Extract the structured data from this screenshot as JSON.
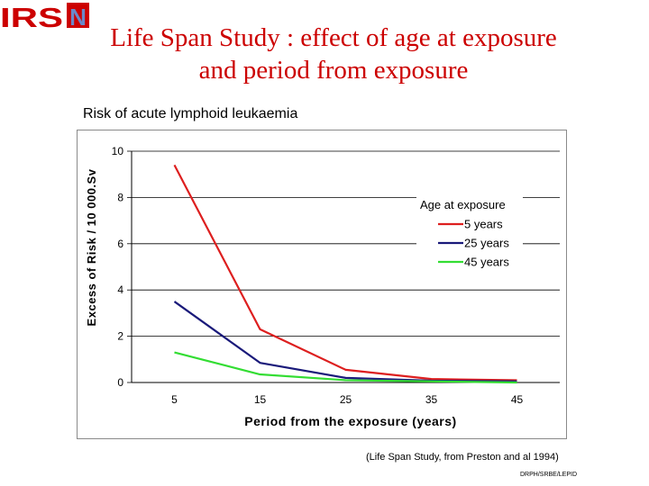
{
  "logo": {
    "text": "IRSN",
    "letters": [
      "I",
      "R",
      "S"
    ],
    "final_letter": "N"
  },
  "slide_title": "Life Span Study : effect of age at exposure and period from exposure",
  "citation": "(Life Span Study, from Preston and al 1994)",
  "footer_code": "DRPH/SRBE/LEPID",
  "colors": {
    "brand_red": "#cc0000",
    "logo_blue": "#6b88c9"
  },
  "chart_data": {
    "type": "line",
    "title": "Risk of acute lymphoid leukaemia",
    "xlabel": "Period from the exposure (years)",
    "ylabel": "Excess of Risk / 10 000.Sv",
    "x": [
      5,
      15,
      25,
      35,
      45
    ],
    "x_ticks": [
      "5",
      "15",
      "25",
      "35",
      "45"
    ],
    "ylim": [
      0,
      10
    ],
    "y_ticks": [
      "0",
      "2",
      "4",
      "6",
      "8",
      "10"
    ],
    "grid": "horizontal",
    "legend_title": "Age at exposure",
    "legend_position": "right",
    "series": [
      {
        "name": "5 years",
        "color": "#dd1f1f",
        "values": [
          9.4,
          2.3,
          0.55,
          0.15,
          0.1
        ]
      },
      {
        "name": "25 years",
        "color": "#1a1a7a",
        "values": [
          3.5,
          0.85,
          0.2,
          0.08,
          0.05
        ]
      },
      {
        "name": "45 years",
        "color": "#33dd33",
        "values": [
          1.3,
          0.35,
          0.1,
          0.05,
          0.0
        ]
      }
    ]
  }
}
